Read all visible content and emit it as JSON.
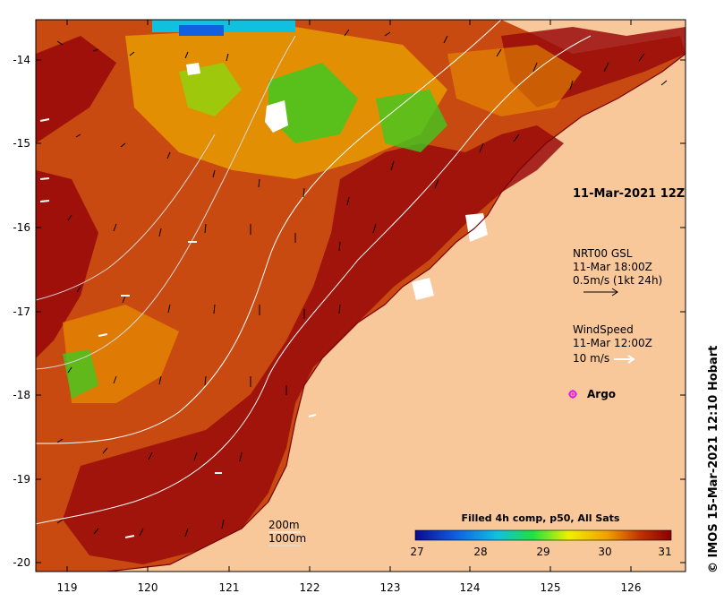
{
  "map": {
    "timestamp": "11-Mar-2021 12Z",
    "x_ticks": [
      "119",
      "120",
      "121",
      "122",
      "123",
      "124",
      "125",
      "126"
    ],
    "y_ticks": [
      "-14",
      "-15",
      "-16",
      "-17",
      "-18",
      "-19",
      "-20"
    ],
    "legend_current": {
      "title": "NRT00 GSL",
      "time": "11-Mar 18:00Z",
      "scale": "0.5m/s (1kt 24h)"
    },
    "legend_wind": {
      "title": "WindSpeed",
      "time": "11-Mar 12:00Z",
      "scale": "10 m/s"
    },
    "argo_label": "Argo",
    "isobaths": [
      "200m",
      "1000m"
    ],
    "colorbar": {
      "title": "Filled 4h comp, p50, All Sats",
      "ticks": [
        "27",
        "28",
        "29",
        "30",
        "31"
      ],
      "colors": [
        "#0a0a8c",
        "#1060e0",
        "#10c0e0",
        "#20e040",
        "#f0f000",
        "#f0a000",
        "#c03000",
        "#8a0000"
      ]
    },
    "credit": "© IMOS 15-Mar-2021 12:10 Hobart",
    "colors": {
      "land": "#f8c79a",
      "sst_base": "#c84a10",
      "sst_hot": "#9a0a0a",
      "sst_cool": "#e8a000",
      "sst_cold": "#40c820",
      "argo": "#e020e0"
    }
  }
}
